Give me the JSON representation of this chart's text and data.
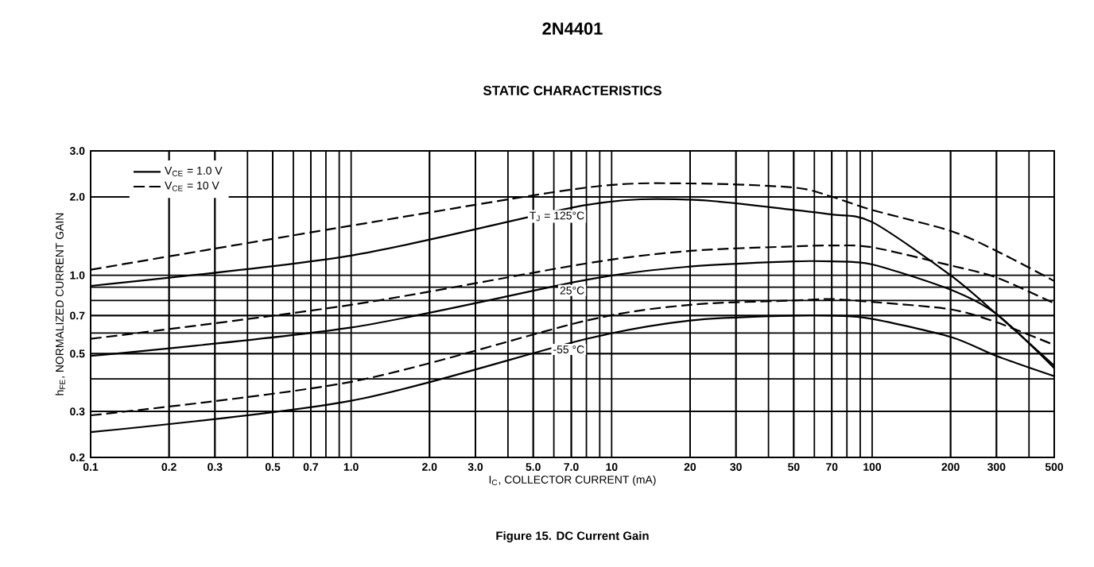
{
  "chart_data": {
    "type": "line",
    "title": "2N4401",
    "subtitle": "STATIC CHARACTERISTICS",
    "xlabel": "I$_{C}$, COLLECTOR CURRENT (mA)",
    "ylabel": "h$_{FE}$, NORMALIZED CURRENT GAIN",
    "x": [
      0.1,
      1,
      8,
      20,
      50,
      70,
      100,
      200,
      300,
      500
    ],
    "series": [
      {
        "name": "V$_{CE}$ = 1.0 V",
        "color": "#000000",
        "line_style": "solid",
        "values": [
          0.91,
          1.19,
          1.86,
          1.95,
          1.78,
          1.71,
          1.6,
          1.0,
          0.71,
          0.45
        ]
      },
      {
        "name": "V$_{CE}$ = 10 V",
        "color": "#000000",
        "line_style": "dashed",
        "values": [
          1.05,
          1.55,
          2.17,
          2.25,
          2.17,
          2.0,
          1.78,
          1.48,
          1.24,
          0.95
        ]
      },
      {
        "color": "#000000",
        "line_style": "solid",
        "values": [
          0.49,
          0.63,
          0.96,
          1.08,
          1.13,
          1.13,
          1.1,
          0.88,
          0.71,
          0.44
        ]
      },
      {
        "color": "#000000",
        "line_style": "dashed",
        "values": [
          0.57,
          0.77,
          1.11,
          1.24,
          1.29,
          1.3,
          1.28,
          1.09,
          0.98,
          0.78
        ]
      },
      {
        "color": "#000000",
        "line_style": "solid",
        "values": [
          0.25,
          0.33,
          0.57,
          0.67,
          0.7,
          0.7,
          0.68,
          0.58,
          0.49,
          0.41
        ]
      },
      {
        "color": "#000000",
        "line_style": "dashed",
        "values": [
          0.29,
          0.39,
          0.67,
          0.77,
          0.8,
          0.81,
          0.79,
          0.74,
          0.66,
          0.54
        ]
      }
    ],
    "xlim": [
      0.1,
      500
    ],
    "ylim": [
      0.2,
      3.0
    ],
    "log": "xy",
    "grid": true,
    "legend": "top left",
    "xticks": [
      0.1,
      0.2,
      0.3,
      0.5,
      0.7,
      {
        "value": 1,
        "label": "1.0"
      },
      {
        "value": 2,
        "label": "2.0"
      },
      {
        "value": 3,
        "label": "3.0"
      },
      {
        "value": 5,
        "label": "5.0"
      },
      {
        "value": 7,
        "label": "7.0"
      },
      10,
      20,
      30,
      50,
      70,
      100,
      200,
      300,
      500
    ],
    "yticks": [
      0.2,
      0.3,
      0.5,
      0.7,
      {
        "value": 1,
        "label": "1.0"
      },
      {
        "value": 2,
        "label": "2.0"
      },
      {
        "value": 3,
        "label": "3.0"
      }
    ],
    "annotations": [
      "T$_{J}$ = 125°C",
      "25°C",
      "-55 °C",
      "Figure 15. DC Current Gain"
    ]
  }
}
